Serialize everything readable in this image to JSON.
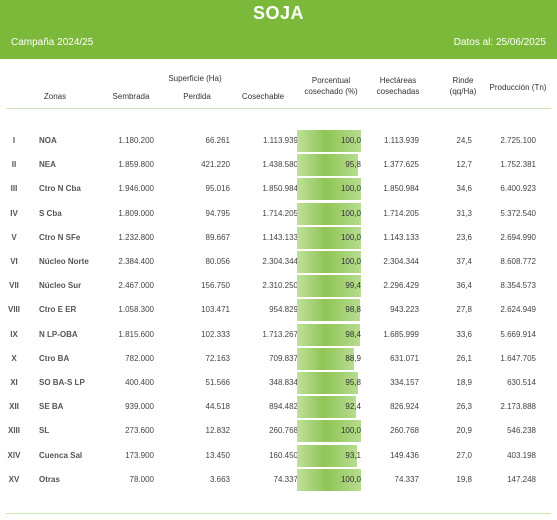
{
  "header": {
    "title": "SOJA",
    "campaign": "Campaña 2024/25",
    "date": "Datos al: 25/06/2025"
  },
  "columns": {
    "zonas": "Zonas",
    "sembrada": "Sembrada",
    "superficie": "Superficie (Ha)",
    "perdida": "Perdida",
    "cosechable": "Cosechable",
    "porcentual_1": "Porcentual",
    "porcentual_2": "cosechado (%)",
    "hectareas_1": "Hectáreas",
    "hectareas_2": "cosechadas",
    "rinde_1": "Rinde",
    "rinde_2": "(qq/Ha)",
    "produccion": "Producción (Tn)"
  },
  "colors": {
    "accent": "#7cb83a",
    "bar": "#8fc556"
  },
  "rows": [
    {
      "n": "I",
      "zona": "NOA",
      "sembrada": "1.180.200",
      "perdida": "66.261",
      "cosechable": "1.113.939",
      "pct": "100,0",
      "pct_value": 100.0,
      "hectareas": "1.113.939",
      "rinde": "24,5",
      "produccion": "2.725.100"
    },
    {
      "n": "II",
      "zona": "NEA",
      "sembrada": "1.859.800",
      "perdida": "421.220",
      "cosechable": "1.438.580",
      "pct": "95,8",
      "pct_value": 95.8,
      "hectareas": "1.377.625",
      "rinde": "12,7",
      "produccion": "1.752.381"
    },
    {
      "n": "III",
      "zona": "Ctro N Cba",
      "sembrada": "1.946.000",
      "perdida": "95.016",
      "cosechable": "1.850.984",
      "pct": "100,0",
      "pct_value": 100.0,
      "hectareas": "1.850.984",
      "rinde": "34,6",
      "produccion": "6.400.923"
    },
    {
      "n": "IV",
      "zona": "S Cba",
      "sembrada": "1.809.000",
      "perdida": "94.795",
      "cosechable": "1.714.205",
      "pct": "100,0",
      "pct_value": 100.0,
      "hectareas": "1.714.205",
      "rinde": "31,3",
      "produccion": "5.372.540"
    },
    {
      "n": "V",
      "zona": "Ctro N SFe",
      "sembrada": "1.232.800",
      "perdida": "89.667",
      "cosechable": "1.143.133",
      "pct": "100,0",
      "pct_value": 100.0,
      "hectareas": "1.143.133",
      "rinde": "23,6",
      "produccion": "2.694.990"
    },
    {
      "n": "VI",
      "zona": "Núcleo Norte",
      "sembrada": "2.384.400",
      "perdida": "80.056",
      "cosechable": "2.304.344",
      "pct": "100,0",
      "pct_value": 100.0,
      "hectareas": "2.304.344",
      "rinde": "37,4",
      "produccion": "8.608.772"
    },
    {
      "n": "VII",
      "zona": "Núcleo Sur",
      "sembrada": "2.467.000",
      "perdida": "156.750",
      "cosechable": "2.310.250",
      "pct": "99,4",
      "pct_value": 99.4,
      "hectareas": "2.296.429",
      "rinde": "36,4",
      "produccion": "8.354.573"
    },
    {
      "n": "VIII",
      "zona": "Ctro E ER",
      "sembrada": "1.058.300",
      "perdida": "103.471",
      "cosechable": "954.829",
      "pct": "98,8",
      "pct_value": 98.8,
      "hectareas": "943.223",
      "rinde": "27,8",
      "produccion": "2.624.949"
    },
    {
      "n": "IX",
      "zona": "N LP-OBA",
      "sembrada": "1.815.600",
      "perdida": "102.333",
      "cosechable": "1.713.267",
      "pct": "98,4",
      "pct_value": 98.4,
      "hectareas": "1.685.999",
      "rinde": "33,6",
      "produccion": "5.669.914"
    },
    {
      "n": "X",
      "zona": "Ctro BA",
      "sembrada": "782.000",
      "perdida": "72.163",
      "cosechable": "709.837",
      "pct": "88,9",
      "pct_value": 88.9,
      "hectareas": "631.071",
      "rinde": "26,1",
      "produccion": "1.647.705"
    },
    {
      "n": "XI",
      "zona": "SO BA-S LP",
      "sembrada": "400.400",
      "perdida": "51.566",
      "cosechable": "348.834",
      "pct": "95,8",
      "pct_value": 95.8,
      "hectareas": "334.157",
      "rinde": "18,9",
      "produccion": "630.514"
    },
    {
      "n": "XII",
      "zona": "SE BA",
      "sembrada": "939.000",
      "perdida": "44.518",
      "cosechable": "894.482",
      "pct": "92,4",
      "pct_value": 92.4,
      "hectareas": "826.924",
      "rinde": "26,3",
      "produccion": "2.173.888"
    },
    {
      "n": "XIII",
      "zona": "SL",
      "sembrada": "273.600",
      "perdida": "12.832",
      "cosechable": "260.768",
      "pct": "100,0",
      "pct_value": 100.0,
      "hectareas": "260.768",
      "rinde": "20,9",
      "produccion": "546.238"
    },
    {
      "n": "XIV",
      "zona": "Cuenca Sal",
      "sembrada": "173.900",
      "perdida": "13.450",
      "cosechable": "160.450",
      "pct": "93,1",
      "pct_value": 93.1,
      "hectareas": "149.436",
      "rinde": "27,0",
      "produccion": "403.198"
    },
    {
      "n": "XV",
      "zona": "Otras",
      "sembrada": "78.000",
      "perdida": "3.663",
      "cosechable": "74.337",
      "pct": "100,0",
      "pct_value": 100.0,
      "hectareas": "74.337",
      "rinde": "19,8",
      "produccion": "147.248"
    }
  ]
}
